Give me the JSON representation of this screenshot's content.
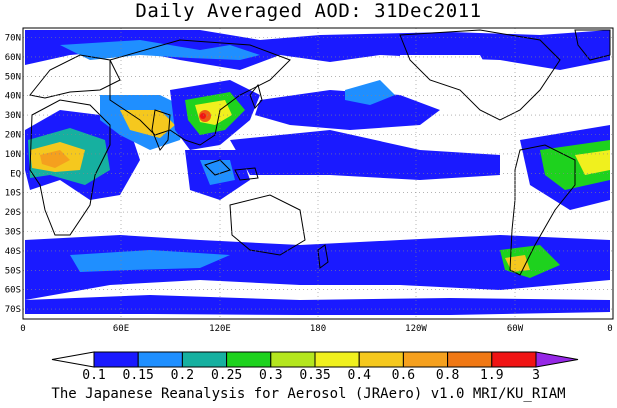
{
  "title": "Daily Averaged AOD: 31Dec2011",
  "footer": "The Japanese Reanalysis for Aerosol (JRAero) v1.0 MRI/KU_RIAM",
  "lat_labels": [
    "70N",
    "60N",
    "50N",
    "40N",
    "30N",
    "20N",
    "10N",
    "EQ",
    "10S",
    "20S",
    "30S",
    "40S",
    "50S",
    "60S",
    "70S"
  ],
  "lon_labels": [
    "0",
    "60E",
    "120E",
    "180",
    "120W",
    "60W",
    "0"
  ],
  "colorbar": {
    "labels": [
      "0.1",
      "0.15",
      "0.2",
      "0.25",
      "0.3",
      "0.35",
      "0.4",
      "0.6",
      "0.8",
      "1.9",
      "3"
    ],
    "colors": [
      "#ffffff",
      "#1a1aff",
      "#1f8fff",
      "#16b0a0",
      "#1ed21e",
      "#b4e61e",
      "#f0f01e",
      "#f5c81e",
      "#f5a01e",
      "#f07814",
      "#f01414",
      "#9628e6"
    ]
  }
}
